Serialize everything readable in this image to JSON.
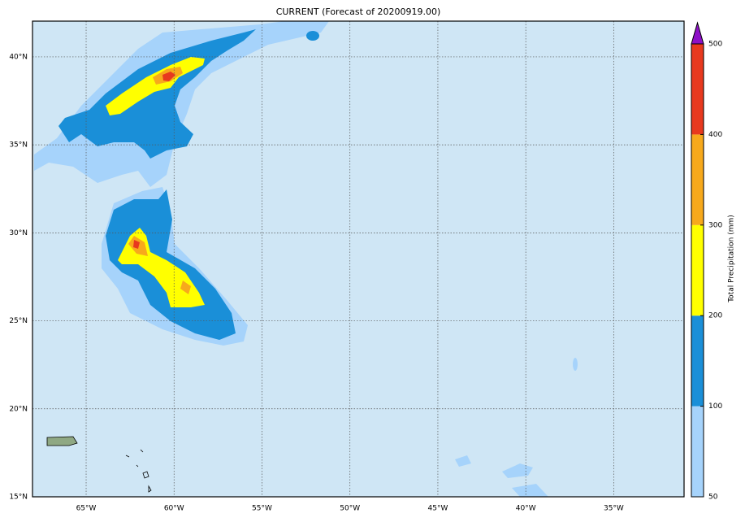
{
  "map": {
    "title": "CURRENT (Forecast of 20200919.00)",
    "xlim": [
      -68.05,
      -31
    ],
    "ylim": [
      15,
      42.03
    ],
    "grid": true,
    "xticks": [
      {
        "value": -65,
        "label": "65°W"
      },
      {
        "value": -60,
        "label": "60°W"
      },
      {
        "value": -55,
        "label": "55°W"
      },
      {
        "value": -50,
        "label": "50°W"
      },
      {
        "value": -45,
        "label": "45°W"
      },
      {
        "value": -40,
        "label": "40°W"
      },
      {
        "value": -35,
        "label": "35°W"
      }
    ],
    "yticks": [
      {
        "value": 15,
        "label": "15°N"
      },
      {
        "value": 20,
        "label": "20°N"
      },
      {
        "value": 25,
        "label": "25°N"
      },
      {
        "value": 30,
        "label": "30°N"
      },
      {
        "value": 35,
        "label": "35°N"
      },
      {
        "value": 40,
        "label": "40°N"
      }
    ],
    "colorbar": {
      "label": "Total Precipitation (mm)",
      "ticks": [
        50,
        100,
        200,
        300,
        400,
        500
      ],
      "colors": [
        "#a6d3fb",
        "#1a8fd8",
        "#ffff00",
        "#f7a91c",
        "#e8391e"
      ],
      "extend_color": "#8e10c8"
    }
  }
}
